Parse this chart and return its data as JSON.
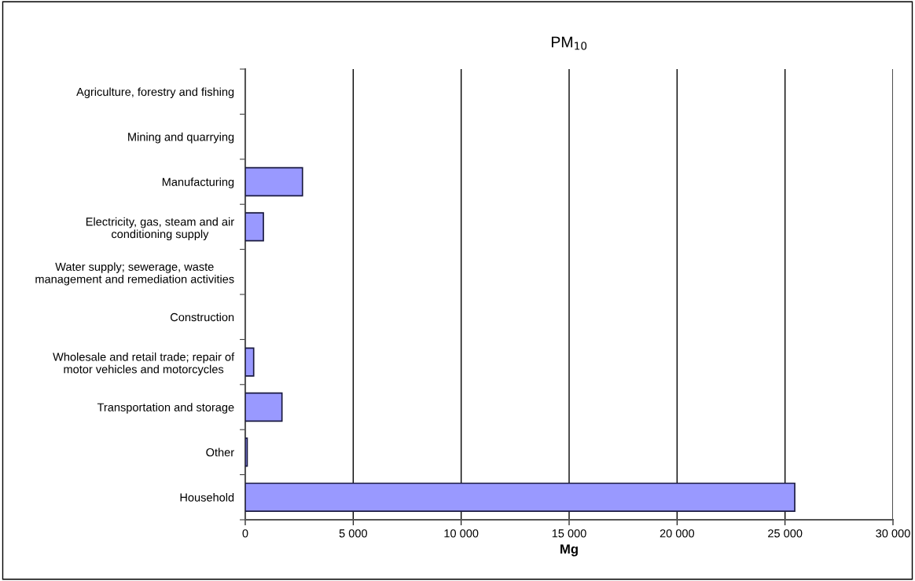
{
  "chart_data": {
    "type": "bar",
    "orientation": "horizontal",
    "title": "PM$_{10}$",
    "xlabel": "Mg",
    "categories": [
      "Agriculture, forestry and fishing",
      "Mining and quarrying",
      "Manufacturing",
      "Electricity, gas, steam and air\nconditioning supply",
      "Water supply; sewerage, waste\nmanagement and remediation activities",
      "Construction",
      "Wholesale and retail trade; repair of\nmotor vehicles and motorcycles",
      "Transportation and storage",
      "Other",
      "Household"
    ],
    "values": [
      0,
      0,
      2650,
      840,
      0,
      0,
      390,
      1700,
      90,
      25450
    ],
    "color": "#9999ff",
    "xlim": [
      0,
      30000
    ],
    "xticks": [
      {
        "value": 0,
        "label": "0"
      },
      {
        "value": 5000,
        "label": "5 000"
      },
      {
        "value": 10000,
        "label": "10 000"
      },
      {
        "value": 15000,
        "label": "15 000"
      },
      {
        "value": 20000,
        "label": "20 000"
      },
      {
        "value": 25000,
        "label": "25 000"
      },
      {
        "value": 30000,
        "label": "30 000"
      }
    ],
    "grid": "x",
    "legend": false
  }
}
